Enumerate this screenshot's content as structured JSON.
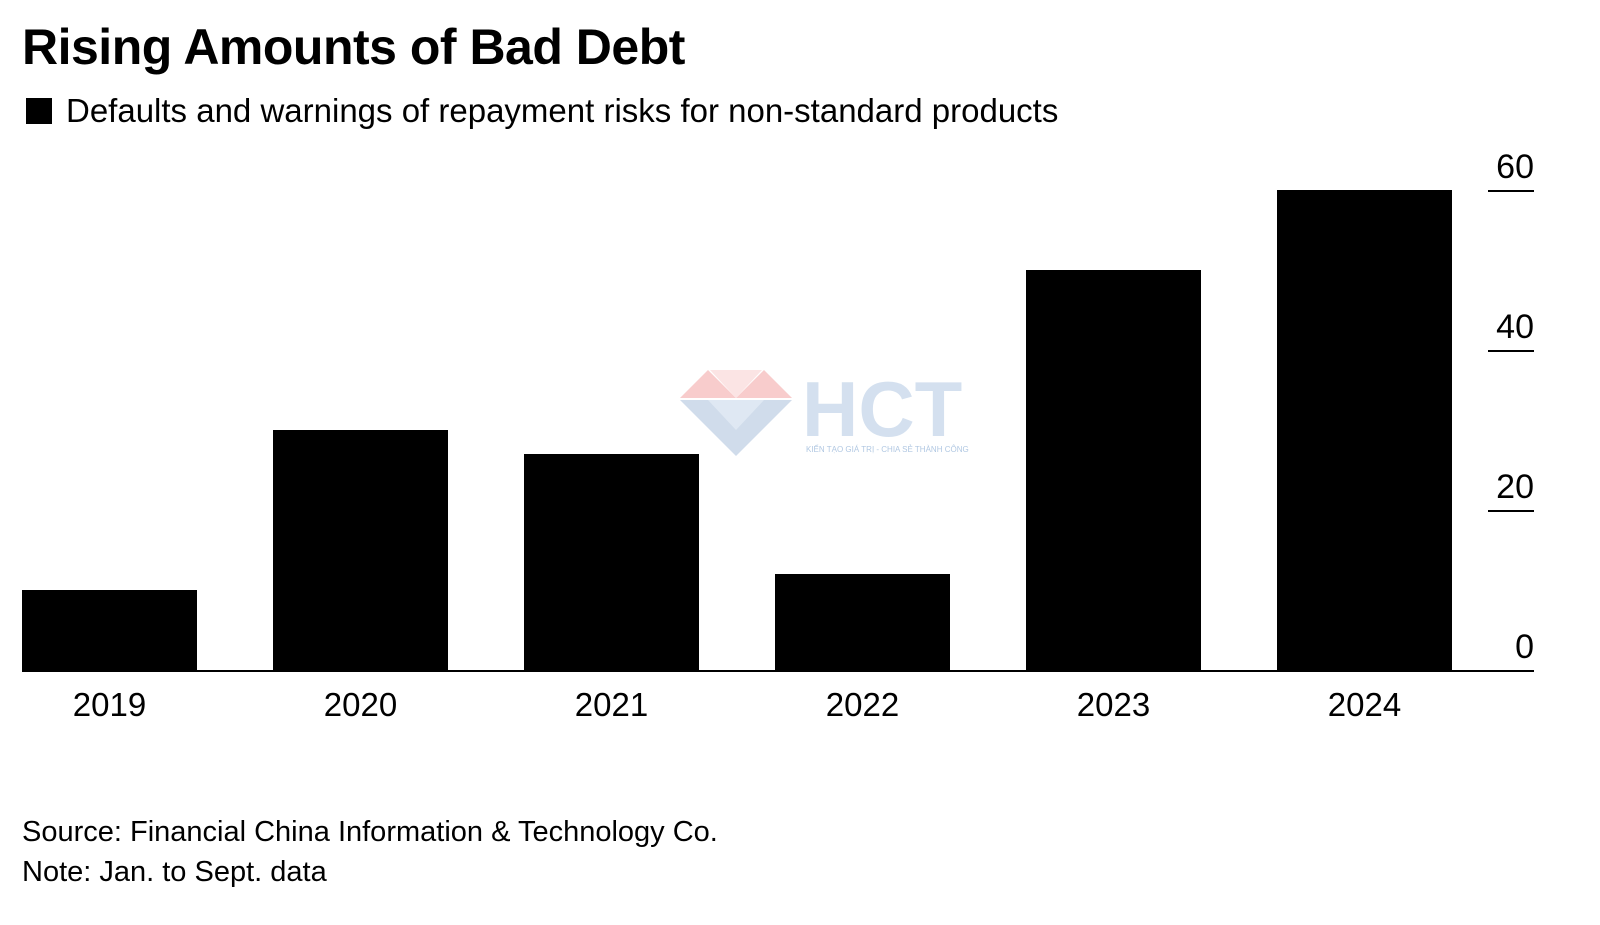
{
  "chart_data": {
    "type": "bar",
    "title": "Rising Amounts of Bad Debt",
    "legend": [
      {
        "label": "Defaults and warnings of repayment risks for non-standard products",
        "color": "#000000"
      }
    ],
    "categories": [
      "2019",
      "2020",
      "2021",
      "2022",
      "2023",
      "2024"
    ],
    "values": [
      10,
      30,
      27,
      12,
      50,
      60
    ],
    "xlabel": "",
    "ylabel": "",
    "ylim": [
      0,
      60
    ],
    "yticks": [
      0,
      20,
      40,
      60
    ],
    "y_axis_side": "right",
    "grid": false,
    "bar_color": "#000000"
  },
  "footer": {
    "source": "Source: Financial China Information & Technology Co.",
    "note": "Note: Jan. to Sept. data"
  },
  "watermark": {
    "text": "HCT",
    "tagline": "KIẾN TẠO GIÁ TRỊ - CHIA SẺ THÀNH CÔNG"
  }
}
